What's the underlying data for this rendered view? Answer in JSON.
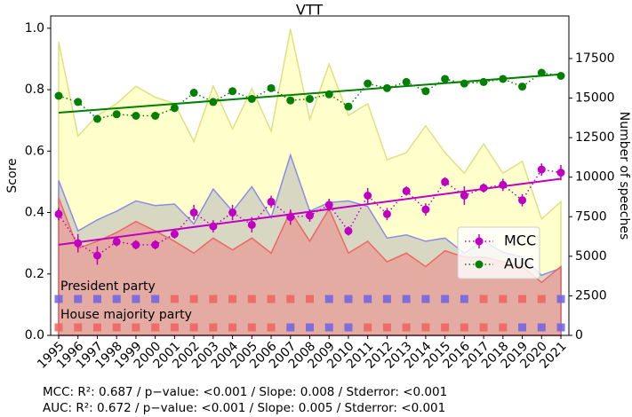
{
  "chart_data": {
    "type": "line",
    "title": "VTT",
    "y_label": "Score",
    "y2_label": "Number of speeches",
    "categories": [
      "1995",
      "1996",
      "1997",
      "1998",
      "1999",
      "2000",
      "2001",
      "2002",
      "2003",
      "2004",
      "2005",
      "2006",
      "2007",
      "2008",
      "2009",
      "2010",
      "2011",
      "2012",
      "2013",
      "2014",
      "2015",
      "2016",
      "2017",
      "2018",
      "2019",
      "2020",
      "2021"
    ],
    "ylim": [
      0,
      1.04
    ],
    "yticks": [
      {
        "value": 0,
        "label": "0.0"
      },
      0.2,
      0.4,
      0.6,
      0.8,
      {
        "value": 1,
        "label": "1.0"
      }
    ],
    "y2lim": [
      0,
      20190
    ],
    "y2ticks": [
      0,
      2500,
      5000,
      7500,
      10000,
      12500,
      15000,
      17500
    ],
    "series": [
      {
        "name": "MCC",
        "color": "#c000c0",
        "values": [
          0.395,
          0.3,
          0.26,
          0.305,
          0.295,
          0.295,
          0.33,
          0.4,
          0.355,
          0.4,
          0.36,
          0.435,
          0.385,
          0.39,
          0.425,
          0.34,
          0.455,
          0.395,
          0.47,
          0.41,
          0.5,
          0.455,
          0.48,
          0.49,
          0.44,
          0.54,
          0.53
        ],
        "errors": [
          0.02,
          0.03,
          0.03,
          0.015,
          0.015,
          0.015,
          0.015,
          0.025,
          0.02,
          0.025,
          0.025,
          0.02,
          0.025,
          0.02,
          0.02,
          0.015,
          0.025,
          0.02,
          0.015,
          0.02,
          0.015,
          0.03,
          0.015,
          0.02,
          0.02,
          0.02,
          0.025
        ],
        "trend": [
          0.295,
          0.51
        ]
      },
      {
        "name": "AUC",
        "color": "#008000",
        "values": [
          0.78,
          0.76,
          0.705,
          0.72,
          0.715,
          0.715,
          0.74,
          0.79,
          0.76,
          0.795,
          0.77,
          0.805,
          0.765,
          0.77,
          0.785,
          0.745,
          0.82,
          0.805,
          0.825,
          0.795,
          0.835,
          0.82,
          0.825,
          0.835,
          0.81,
          0.855,
          0.845
        ],
        "trend": [
          0.725,
          0.85
        ]
      }
    ],
    "areas": [
      {
        "color": "#ffff99",
        "edgecolor": "#e0e080",
        "axis": "y2",
        "values": [
          18550,
          12600,
          13900,
          14650,
          15750,
          15050,
          14650,
          12250,
          15750,
          13050,
          15600,
          12900,
          19350,
          13650,
          17150,
          13900,
          14650,
          11100,
          11550,
          13250,
          11550,
          10250,
          12100,
          10250,
          11000,
          7350,
          8450
        ]
      },
      {
        "color": "#b0b0b8",
        "edgecolor": "#8c8ce6",
        "axis": "y2",
        "values": [
          9800,
          6600,
          7300,
          7850,
          8500,
          8200,
          8300,
          7050,
          9250,
          7850,
          9400,
          7450,
          11400,
          7850,
          8400,
          8500,
          8150,
          6150,
          6350,
          5950,
          6150,
          5200,
          5950,
          5250,
          4950,
          3800,
          4250
        ]
      },
      {
        "color": "#f08080",
        "edgecolor": "#ee6666",
        "axis": "y2",
        "values": [
          8700,
          5500,
          5950,
          6500,
          7200,
          6600,
          5950,
          5200,
          6150,
          5400,
          6150,
          5200,
          7850,
          5950,
          8000,
          5200,
          5950,
          4650,
          5200,
          4350,
          5350,
          4950,
          4950,
          4650,
          4350,
          3350,
          4350
        ]
      }
    ],
    "party_rows": [
      {
        "label": "President party",
        "colors": [
          "#6e62e6",
          "#6e62e6",
          "#6e62e6",
          "#6e62e6",
          "#6e62e6",
          "#6e62e6",
          "#f0625f",
          "#f0625f",
          "#f0625f",
          "#f0625f",
          "#f0625f",
          "#f0625f",
          "#f0625f",
          "#f0625f",
          "#6e62e6",
          "#6e62e6",
          "#6e62e6",
          "#6e62e6",
          "#6e62e6",
          "#6e62e6",
          "#6e62e6",
          "#6e62e6",
          "#f0625f",
          "#f0625f",
          "#f0625f",
          "#f0625f",
          "#6e62e6"
        ]
      },
      {
        "label": "House majority party",
        "colors": [
          "#f0625f",
          "#f0625f",
          "#f0625f",
          "#f0625f",
          "#f0625f",
          "#f0625f",
          "#f0625f",
          "#f0625f",
          "#f0625f",
          "#f0625f",
          "#f0625f",
          "#f0625f",
          "#6e62e6",
          "#6e62e6",
          "#6e62e6",
          "#6e62e6",
          "#f0625f",
          "#f0625f",
          "#f0625f",
          "#f0625f",
          "#f0625f",
          "#f0625f",
          "#f0625f",
          "#f0625f",
          "#6e62e6",
          "#6e62e6",
          "#6e62e6"
        ]
      }
    ],
    "legend": "lower right",
    "footnotes": [
      "MCC: R²: 0.687 / p−value: <0.001 / Slope: 0.008 / Stderror: <0.001",
      "AUC: R²: 0.672 / p−value: <0.001 / Slope: 0.005 / Stderror: <0.001"
    ]
  }
}
